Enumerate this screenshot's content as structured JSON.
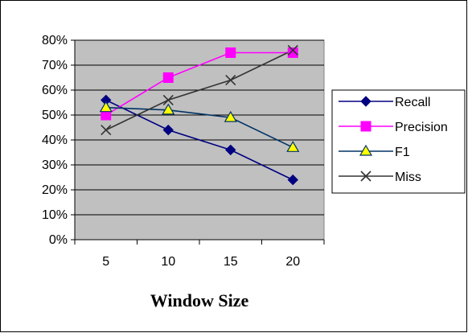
{
  "chart_data": {
    "type": "line",
    "title": "",
    "xlabel": "Window Size",
    "ylabel": "",
    "categories": [
      "5",
      "10",
      "15",
      "20"
    ],
    "ylim": [
      0,
      0.8
    ],
    "yticks": [
      "0%",
      "10%",
      "20%",
      "30%",
      "40%",
      "50%",
      "60%",
      "70%",
      "80%"
    ],
    "grid": true,
    "legend": "right",
    "plot_background": "#c0c0c0",
    "series": [
      {
        "name": "Recall",
        "values": [
          0.56,
          0.44,
          0.36,
          0.24
        ],
        "color": "#000080",
        "marker": "diamond"
      },
      {
        "name": "Precision",
        "values": [
          0.5,
          0.65,
          0.75,
          0.75
        ],
        "color": "#ff00ff",
        "marker": "square"
      },
      {
        "name": "F1",
        "values": [
          0.53,
          0.52,
          0.49,
          0.37
        ],
        "color": "#003366",
        "marker": "triangle"
      },
      {
        "name": "Miss",
        "values": [
          0.44,
          0.56,
          0.64,
          0.76
        ],
        "color": "#333333",
        "marker": "x"
      }
    ]
  }
}
